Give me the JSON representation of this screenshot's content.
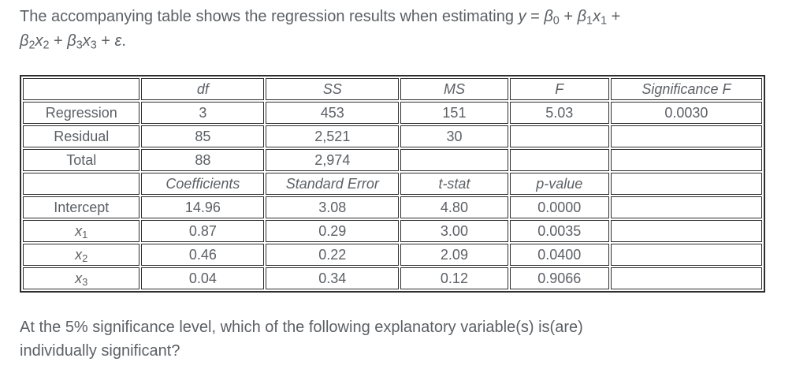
{
  "colors": {
    "text_color": "#5c6065",
    "border_color": "#2e2e2e",
    "page_bg": "#ffffff"
  },
  "intro": {
    "segments": [
      {
        "t": "The accompanying table shows the regression results when estimating "
      },
      {
        "t": "y",
        "i": true
      },
      {
        "t": " = "
      },
      {
        "t": "β",
        "i": true,
        "s": "0"
      },
      {
        "t": " + "
      },
      {
        "t": "β",
        "i": true,
        "s": "1"
      },
      {
        "t": "x",
        "i": true,
        "s": "1"
      },
      {
        "t": " +"
      },
      {
        "br": true
      },
      {
        "t": "β",
        "i": true,
        "s": "2"
      },
      {
        "t": "x",
        "i": true,
        "s": "2"
      },
      {
        "t": " + "
      },
      {
        "t": "β",
        "i": true,
        "s": "3"
      },
      {
        "t": "x",
        "i": true,
        "s": "3"
      },
      {
        "t": " + "
      },
      {
        "t": "ε",
        "i": true
      },
      {
        "t": "."
      }
    ]
  },
  "table": {
    "anova": {
      "header": [
        "",
        "df",
        "SS",
        "MS",
        "F",
        "Significance F"
      ],
      "rows": [
        {
          "label": "Regression",
          "df": "3",
          "ss": "453",
          "ms": "151",
          "f": "5.03",
          "sig_f": "0.0030"
        },
        {
          "label": "Residual",
          "df": "85",
          "ss": "2,521",
          "ms": "30",
          "f": "",
          "sig_f": ""
        },
        {
          "label": "Total",
          "df": "88",
          "ss": "2,974",
          "ms": "",
          "f": "",
          "sig_f": ""
        }
      ]
    },
    "coefficients": {
      "header": [
        "",
        "Coefficients",
        "Standard Error",
        "t-stat",
        "p-value",
        ""
      ],
      "rows": [
        {
          "label_segments": [
            {
              "t": "Intercept"
            }
          ],
          "coefficient": "14.96",
          "standard_error": "3.08",
          "t_stat": "4.80",
          "p_value": "0.0000",
          "sig_f": ""
        },
        {
          "label_segments": [
            {
              "t": "x",
              "i": true,
              "s": "1"
            }
          ],
          "coefficient": "0.87",
          "standard_error": "0.29",
          "t_stat": "3.00",
          "p_value": "0.0035",
          "sig_f": ""
        },
        {
          "label_segments": [
            {
              "t": "x",
              "i": true,
              "s": "2"
            }
          ],
          "coefficient": "0.46",
          "standard_error": "0.22",
          "t_stat": "2.09",
          "p_value": "0.0400",
          "sig_f": ""
        },
        {
          "label_segments": [
            {
              "t": "x",
              "i": true,
              "s": "3"
            }
          ],
          "coefficient": "0.04",
          "standard_error": "0.34",
          "t_stat": "0.12",
          "p_value": "0.9066",
          "sig_f": ""
        }
      ]
    }
  },
  "question": {
    "text": "At the 5% significance level, which of the following explanatory variable(s) is(are)\nindividually significant?"
  }
}
